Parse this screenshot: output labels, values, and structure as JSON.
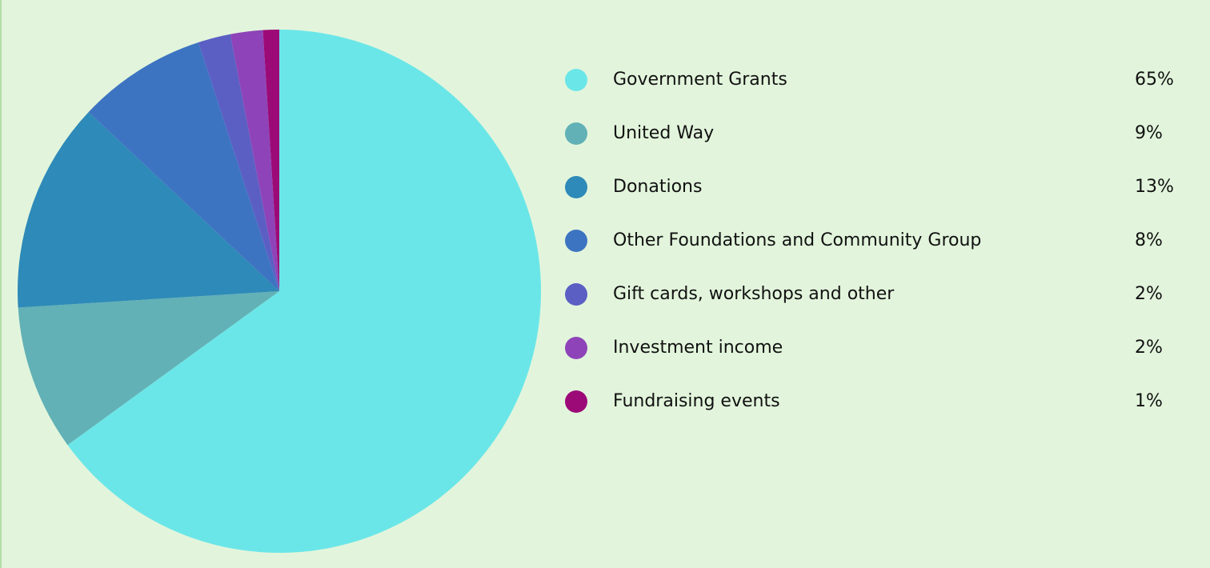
{
  "chart_data": {
    "type": "pie",
    "categories": [
      "Government Grants",
      "United Way",
      "Donations",
      "Other Foundations and Community Group",
      "Gift cards, workshops and other",
      "Investment income",
      "Fundraising events"
    ],
    "values": [
      65,
      9,
      13,
      8,
      2,
      2,
      1
    ],
    "value_labels": [
      "65%",
      "9%",
      "13%",
      "8%",
      "2%",
      "2%",
      "1%"
    ],
    "colors": [
      "#6be6e8",
      "#62b1b6",
      "#2e8ab8",
      "#3d74c2",
      "#5b5fc4",
      "#8e44b8",
      "#9c0a78"
    ]
  }
}
